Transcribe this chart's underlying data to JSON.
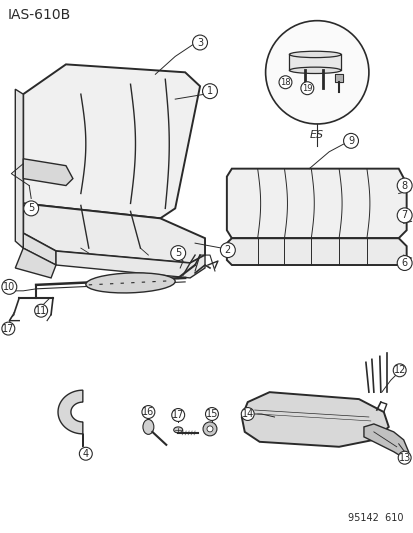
{
  "title": "IAS−610B",
  "part_number": "95142  610",
  "bg_color": "#ffffff",
  "line_color": "#2a2a2a",
  "figsize": [
    4.14,
    5.33
  ],
  "dpi": 100
}
